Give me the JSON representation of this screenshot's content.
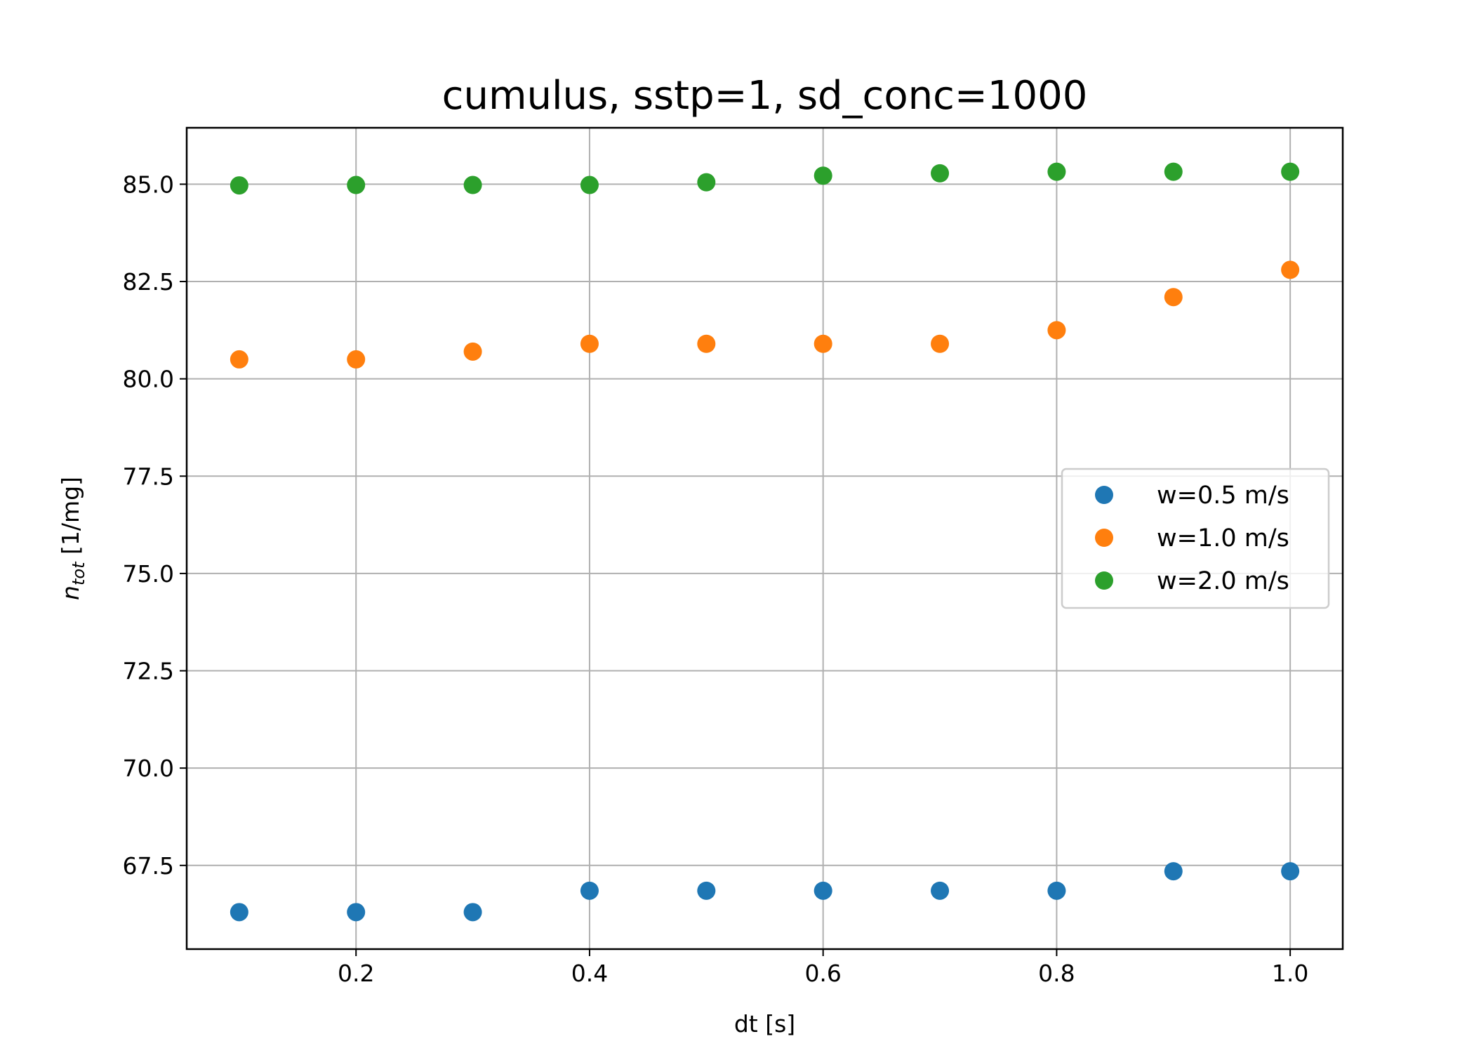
{
  "chart_data": {
    "type": "scatter",
    "title": "cumulus, sstp=1, sd_conc=1000",
    "xlabel": "dt [s]",
    "ylabel_main": "n",
    "ylabel_sub": "tot",
    "ylabel_rest": " [1/mg]",
    "xlim": [
      0.055,
      1.045
    ],
    "ylim": [
      65.35,
      86.45
    ],
    "xticks": [
      0.2,
      0.4,
      0.6,
      0.8,
      1.0
    ],
    "xtick_labels": [
      "0.2",
      "0.4",
      "0.6",
      "0.8",
      "1.0"
    ],
    "yticks": [
      67.5,
      70.0,
      72.5,
      75.0,
      77.5,
      80.0,
      82.5,
      85.0
    ],
    "ytick_labels": [
      "67.5",
      "70.0",
      "72.5",
      "75.0",
      "77.5",
      "80.0",
      "82.5",
      "85.0"
    ],
    "grid": true,
    "legend_position": "center-right",
    "x": [
      0.1,
      0.2,
      0.3,
      0.4,
      0.5,
      0.6,
      0.7,
      0.8,
      0.9,
      1.0
    ],
    "series": [
      {
        "name": "w=0.5 m/s",
        "color": "#1f77b4",
        "values": [
          66.3,
          66.3,
          66.3,
          66.85,
          66.85,
          66.85,
          66.85,
          66.85,
          67.35,
          67.35
        ]
      },
      {
        "name": "w=1.0 m/s",
        "color": "#ff7f0e",
        "values": [
          80.5,
          80.5,
          80.7,
          80.9,
          80.9,
          80.9,
          80.9,
          81.25,
          82.1,
          82.8
        ]
      },
      {
        "name": "w=2.0 m/s",
        "color": "#2ca02c",
        "values": [
          84.97,
          84.98,
          84.98,
          84.98,
          85.05,
          85.22,
          85.28,
          85.32,
          85.32,
          85.32
        ]
      }
    ]
  }
}
